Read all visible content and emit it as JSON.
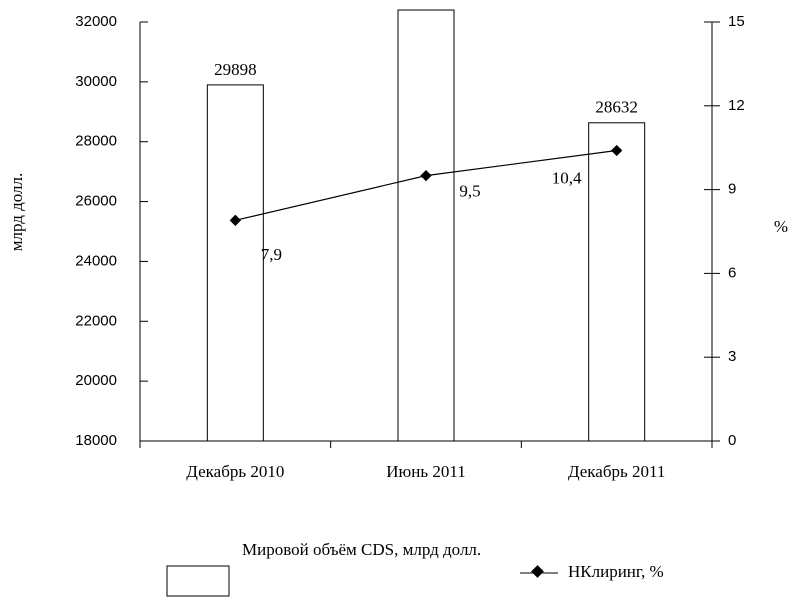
{
  "chart_data": {
    "type": "bar_line",
    "categories": [
      "Декабрь 2010",
      "Июнь 2011",
      "Декабрь 2011"
    ],
    "ylabel": "млрд долл.",
    "y2label": "%",
    "ylim": [
      18000,
      32000
    ],
    "yticks": [
      18000,
      20000,
      22000,
      24000,
      26000,
      28000,
      30000,
      32000
    ],
    "y2lim": [
      0,
      15
    ],
    "y2ticks": [
      0,
      3,
      6,
      9,
      12,
      15
    ],
    "series": [
      {
        "name": "Мировой объём CDS, млрд долл.",
        "type": "bar",
        "color": "#ffffff",
        "values": [
          29898,
          32400,
          28632
        ],
        "value_labels": [
          "29898",
          null,
          "28632"
        ]
      },
      {
        "name": "НКлиринг, %",
        "type": "line",
        "axis": "y2",
        "color": "#000000",
        "values": [
          7.9,
          9.5,
          10.4
        ],
        "value_labels": [
          "7,9",
          "9,5",
          "10,4"
        ]
      }
    ]
  }
}
